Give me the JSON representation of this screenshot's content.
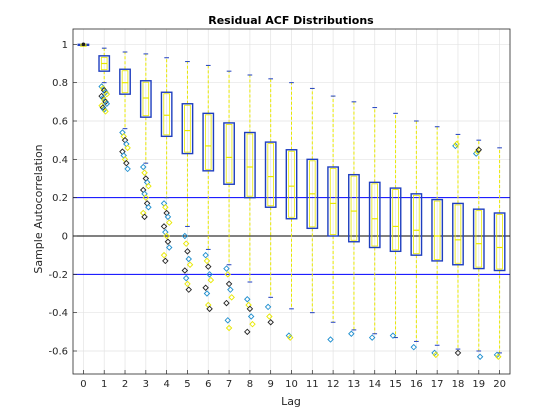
{
  "chart_data": {
    "type": "box",
    "title": "Residual ACF Distributions",
    "xlabel": "Lag",
    "ylabel": "Sample Autocorrelation",
    "x_ticks": [
      "0",
      "1",
      "2",
      "3",
      "4",
      "5",
      "6",
      "7",
      "8",
      "9",
      "10",
      "11",
      "12",
      "13",
      "14",
      "15",
      "16",
      "17",
      "18",
      "19",
      "20"
    ],
    "y_ticks": [
      "-0.6",
      "-0.4",
      "-0.2",
      "0",
      "0.2",
      "0.4",
      "0.6",
      "0.8",
      "1"
    ],
    "xlim": [
      -0.5,
      20.5
    ],
    "ylim": [
      -0.72,
      1.08
    ],
    "grid": true,
    "reference_lines": [
      {
        "y": 0.2,
        "color": "#0000ff"
      },
      {
        "y": -0.2,
        "color": "#0000ff"
      },
      {
        "y": 0,
        "color": "#000000"
      }
    ],
    "colors": {
      "box": "#1f3fbf",
      "median": "#e8e800",
      "whisker": "#e8e800",
      "outlier_a": "#1f8fcf",
      "outlier_b": "#e8e800",
      "outlier_c": "#222222"
    },
    "boxes": [
      {
        "lag": 0,
        "q1": 1.0,
        "median": 1.0,
        "q3": 1.0,
        "low": 1.0,
        "high": 1.0,
        "outliers": []
      },
      {
        "lag": 1,
        "q1": 0.86,
        "median": 0.9,
        "q3": 0.94,
        "low": 0.8,
        "high": 0.98,
        "outliers": [
          0.78,
          0.77,
          0.76,
          0.75,
          0.74,
          0.73,
          0.72,
          0.71,
          0.7,
          0.69,
          0.68,
          0.67,
          0.66,
          0.65
        ]
      },
      {
        "lag": 2,
        "q1": 0.74,
        "median": 0.8,
        "q3": 0.87,
        "low": 0.56,
        "high": 0.96,
        "outliers": [
          0.54,
          0.52,
          0.5,
          0.48,
          0.46,
          0.44,
          0.42,
          0.4,
          0.38,
          0.35
        ]
      },
      {
        "lag": 3,
        "q1": 0.62,
        "median": 0.72,
        "q3": 0.81,
        "low": 0.38,
        "high": 0.95,
        "outliers": [
          0.36,
          0.33,
          0.3,
          0.28,
          0.26,
          0.24,
          0.22,
          0.2,
          0.17,
          0.15,
          0.12,
          0.1
        ]
      },
      {
        "lag": 4,
        "q1": 0.52,
        "median": 0.63,
        "q3": 0.75,
        "low": 0.2,
        "high": 0.93,
        "outliers": [
          0.17,
          0.15,
          0.12,
          0.1,
          0.07,
          0.05,
          0.02,
          0.0,
          -0.03,
          -0.06,
          -0.1,
          -0.13
        ]
      },
      {
        "lag": 5,
        "q1": 0.43,
        "median": 0.55,
        "q3": 0.69,
        "low": 0.05,
        "high": 0.91,
        "outliers": [
          0.0,
          -0.04,
          -0.08,
          -0.12,
          -0.15,
          -0.18,
          -0.22,
          -0.25,
          -0.28
        ]
      },
      {
        "lag": 6,
        "q1": 0.34,
        "median": 0.47,
        "q3": 0.64,
        "low": -0.07,
        "high": 0.89,
        "outliers": [
          -0.1,
          -0.13,
          -0.16,
          -0.2,
          -0.23,
          -0.27,
          -0.3,
          -0.36,
          -0.38
        ]
      },
      {
        "lag": 7,
        "q1": 0.27,
        "median": 0.41,
        "q3": 0.59,
        "low": -0.15,
        "high": 0.86,
        "outliers": [
          -0.17,
          -0.2,
          -0.25,
          -0.28,
          -0.32,
          -0.35,
          -0.44,
          -0.48
        ]
      },
      {
        "lag": 8,
        "q1": 0.2,
        "median": 0.36,
        "q3": 0.54,
        "low": -0.24,
        "high": 0.84,
        "outliers": [
          -0.33,
          -0.36,
          -0.38,
          -0.42,
          -0.46,
          -0.5
        ]
      },
      {
        "lag": 9,
        "q1": 0.15,
        "median": 0.31,
        "q3": 0.49,
        "low": -0.32,
        "high": 0.82,
        "outliers": [
          -0.37,
          -0.42,
          -0.45
        ]
      },
      {
        "lag": 10,
        "q1": 0.09,
        "median": 0.26,
        "q3": 0.45,
        "low": -0.38,
        "high": 0.8,
        "outliers": [
          -0.52,
          -0.53
        ]
      },
      {
        "lag": 11,
        "q1": 0.04,
        "median": 0.22,
        "q3": 0.4,
        "low": -0.4,
        "high": 0.77,
        "outliers": []
      },
      {
        "lag": 12,
        "q1": 0.0,
        "median": 0.17,
        "q3": 0.36,
        "low": -0.45,
        "high": 0.73,
        "outliers": [
          -0.54
        ]
      },
      {
        "lag": 13,
        "q1": -0.03,
        "median": 0.13,
        "q3": 0.32,
        "low": -0.49,
        "high": 0.7,
        "outliers": [
          -0.51
        ]
      },
      {
        "lag": 14,
        "q1": -0.06,
        "median": 0.09,
        "q3": 0.28,
        "low": -0.51,
        "high": 0.67,
        "outliers": [
          -0.53
        ]
      },
      {
        "lag": 15,
        "q1": -0.08,
        "median": 0.05,
        "q3": 0.25,
        "low": -0.53,
        "high": 0.64,
        "outliers": [
          -0.52
        ]
      },
      {
        "lag": 16,
        "q1": -0.1,
        "median": 0.03,
        "q3": 0.22,
        "low": -0.55,
        "high": 0.6,
        "outliers": [
          -0.58
        ]
      },
      {
        "lag": 17,
        "q1": -0.13,
        "median": 0.0,
        "q3": 0.19,
        "low": -0.57,
        "high": 0.57,
        "outliers": [
          -0.61,
          -0.62
        ]
      },
      {
        "lag": 18,
        "q1": -0.15,
        "median": -0.02,
        "q3": 0.17,
        "low": -0.59,
        "high": 0.53,
        "outliers": [
          0.47,
          0.48,
          -0.61
        ]
      },
      {
        "lag": 19,
        "q1": -0.17,
        "median": -0.04,
        "q3": 0.14,
        "low": -0.6,
        "high": 0.5,
        "outliers": [
          0.43,
          0.44,
          0.45,
          -0.63
        ]
      },
      {
        "lag": 20,
        "q1": -0.18,
        "median": -0.06,
        "q3": 0.12,
        "low": -0.61,
        "high": 0.46,
        "outliers": [
          -0.62,
          -0.63
        ]
      }
    ]
  }
}
